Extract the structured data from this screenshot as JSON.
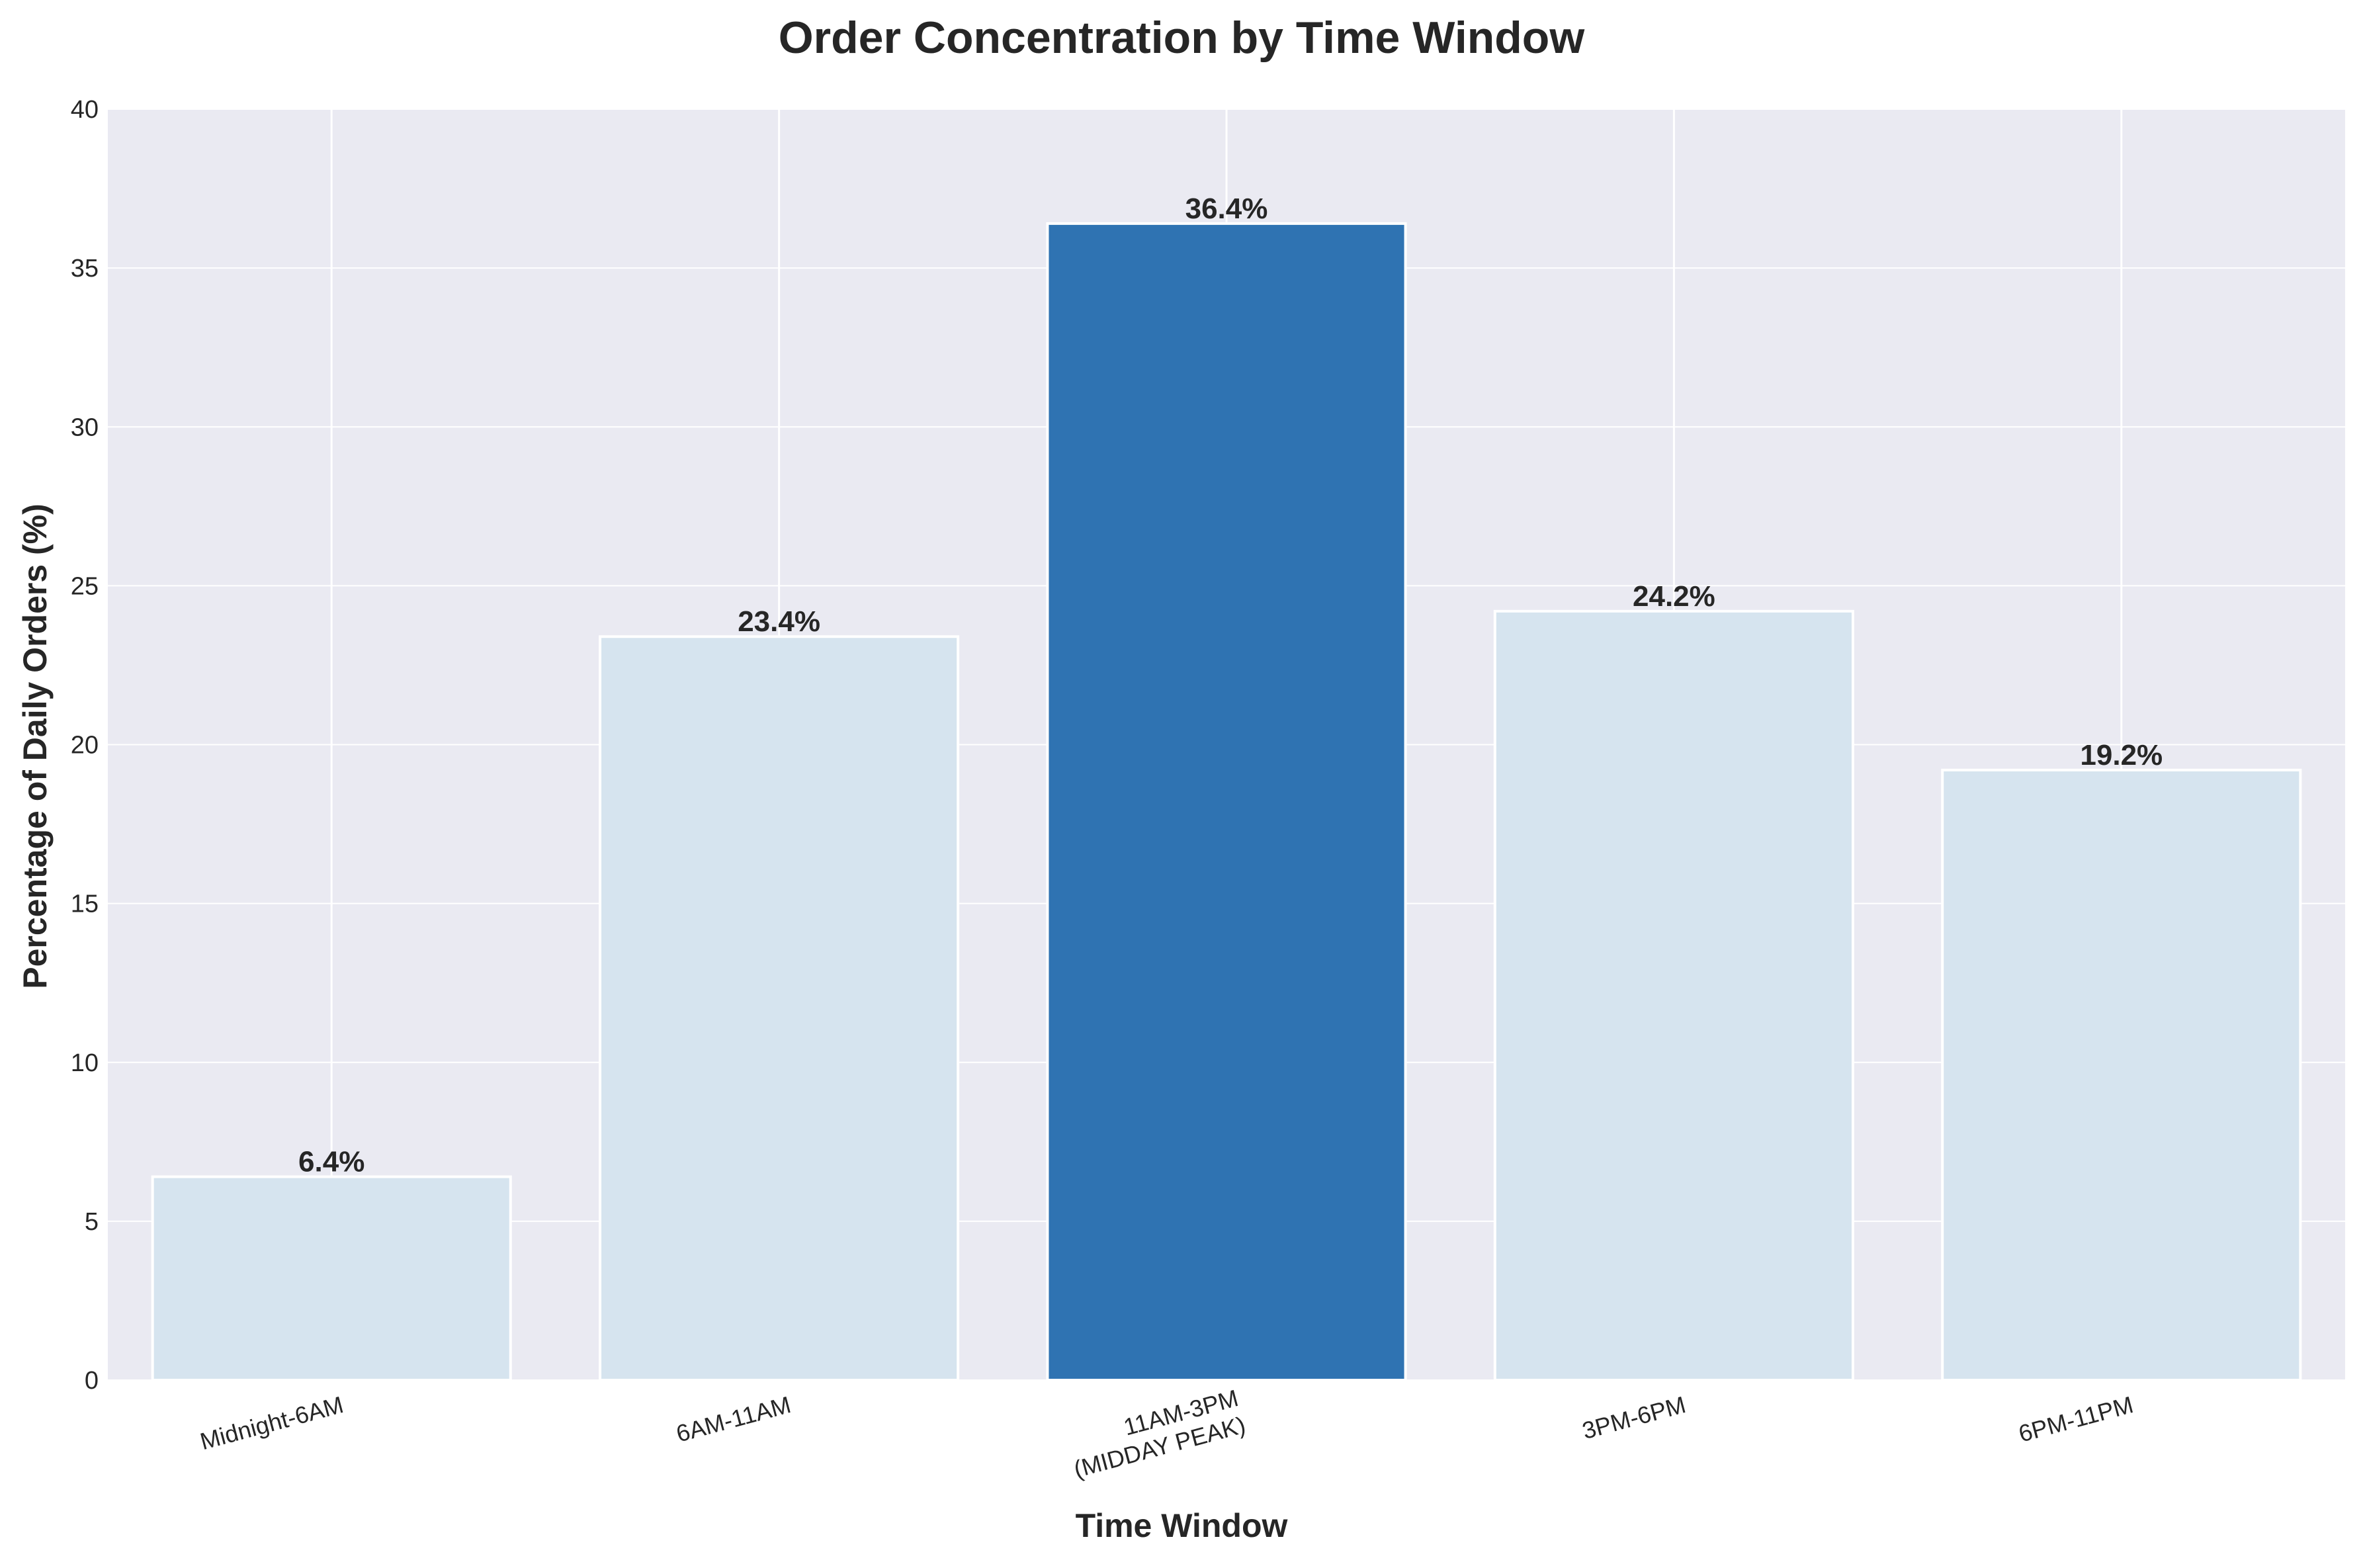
{
  "chart_data": {
    "type": "bar",
    "title": "Order Concentration by Time Window",
    "xlabel": "Time Window",
    "ylabel": "Percentage of Daily Orders (%)",
    "categories": [
      "Midnight-6AM",
      "6AM-11AM",
      "11AM-3PM\n(MIDDAY PEAK)",
      "3PM-6PM",
      "6PM-11PM"
    ],
    "values": [
      6.4,
      23.4,
      36.4,
      24.2,
      19.2
    ],
    "value_labels": [
      "6.4%",
      "23.4%",
      "36.4%",
      "24.2%",
      "19.2%"
    ],
    "highlight_index": 2,
    "ylim": [
      0,
      40
    ],
    "yticks": [
      0,
      5,
      10,
      15,
      20,
      25,
      30,
      35,
      40
    ],
    "ytick_labels": [
      "0",
      "5",
      "10",
      "15",
      "20",
      "25",
      "30",
      "35",
      "40"
    ],
    "grid": true,
    "colors": {
      "bar": "#d6e4ef",
      "highlight": "#2f73b2",
      "plot_background": "#eaeaf2",
      "grid": "#ffffff",
      "text": "#262626"
    }
  }
}
